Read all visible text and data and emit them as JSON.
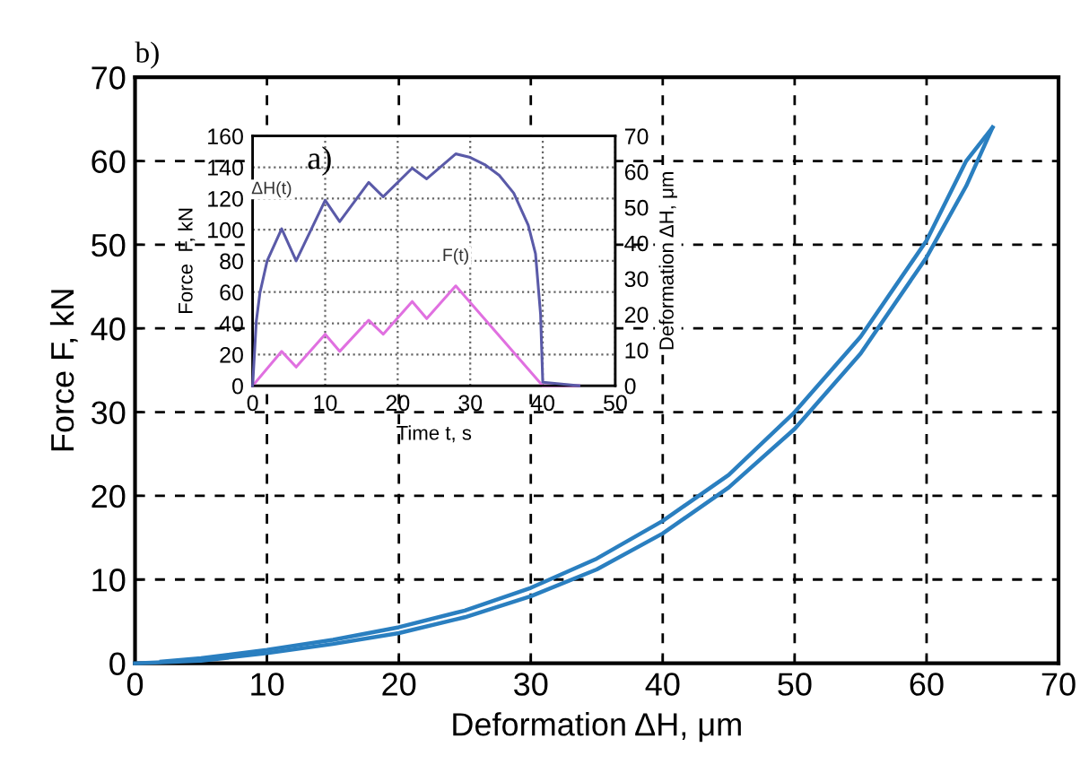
{
  "chart_data": [
    {
      "type": "line",
      "title": "b)",
      "xlabel": "Deformation ΔH, μm",
      "ylabel": "Force F, kN",
      "xlim": [
        0,
        70
      ],
      "ylim": [
        0,
        70
      ],
      "xticks": [
        0,
        10,
        20,
        30,
        40,
        50,
        60,
        70
      ],
      "yticks": [
        0,
        10,
        20,
        30,
        40,
        50,
        60,
        70
      ],
      "grid": true,
      "line_style": "solid",
      "series": [
        {
          "color": "#2a7fc0",
          "x": [
            0,
            5,
            10,
            15,
            20,
            25,
            30,
            35,
            40,
            45,
            50,
            55,
            60,
            63,
            65
          ],
          "values": [
            0,
            0.3,
            1.2,
            2.3,
            3.6,
            5.5,
            8,
            11.2,
            15.5,
            21,
            28,
            37,
            48.5,
            57,
            64
          ]
        },
        {
          "color": "#2a7fc0",
          "x": [
            65,
            63,
            60,
            55,
            50,
            45,
            40,
            35,
            30,
            25,
            20,
            15,
            10,
            5,
            2
          ],
          "values": [
            64,
            60,
            50.5,
            39,
            30,
            22.5,
            17,
            12.5,
            9,
            6.3,
            4.3,
            2.8,
            1.6,
            0.6,
            0.2
          ]
        }
      ]
    },
    {
      "type": "line",
      "title": "a)",
      "xlabel": "Time t, s",
      "ylabel": "Force  F, kN",
      "y2label": "Deformation ΔH, μm",
      "xlim": [
        0,
        50
      ],
      "ylim": [
        0,
        160
      ],
      "y2lim": [
        0,
        70
      ],
      "xticks": [
        0,
        10,
        20,
        30,
        40,
        50
      ],
      "yticks": [
        0,
        20,
        40,
        60,
        80,
        100,
        120,
        140,
        160
      ],
      "y2ticks": [
        0,
        10,
        20,
        30,
        40,
        50,
        60,
        70
      ],
      "grid": true,
      "line_style": "solid",
      "series": [
        {
          "name": "ΔH(t)",
          "color": "#5a5aa8",
          "axis": "y2",
          "x": [
            0,
            0.5,
            1,
            2,
            4,
            6,
            10,
            12,
            16,
            18,
            22,
            24,
            28,
            30,
            32,
            34,
            36,
            38,
            39,
            39.7,
            40,
            45
          ],
          "values": [
            0,
            18,
            26,
            35,
            44,
            35,
            52,
            46,
            57,
            53,
            61,
            58,
            65,
            64,
            62,
            59,
            54,
            45,
            37,
            20,
            1,
            0
          ]
        },
        {
          "name": "F(t)",
          "color": "#e070e0",
          "axis": "y",
          "x": [
            0,
            4,
            6,
            10,
            12,
            16,
            18,
            22,
            24,
            28,
            40,
            45
          ],
          "values": [
            0,
            22,
            12,
            33,
            22,
            42,
            33,
            54,
            43,
            64,
            0,
            0
          ]
        }
      ]
    }
  ]
}
